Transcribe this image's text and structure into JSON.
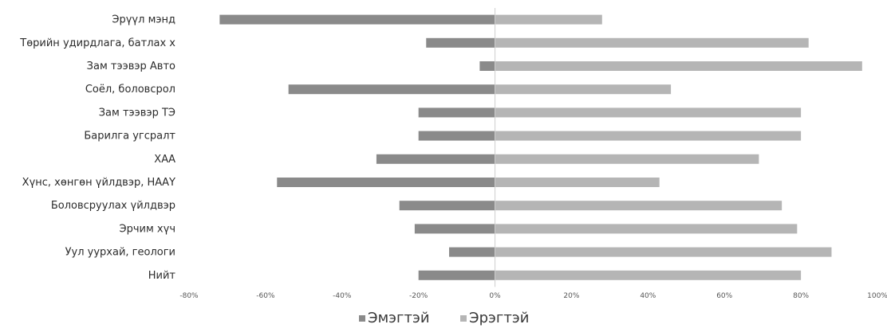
{
  "chart_data": {
    "type": "bar",
    "orientation": "horizontal",
    "stacked": "diverging",
    "title": "",
    "xlabel": "",
    "ylabel": "",
    "xlim": [
      -0.8,
      1.0
    ],
    "x_ticks": [
      -0.8,
      -0.6,
      -0.4,
      -0.2,
      0,
      0.2,
      0.4,
      0.6,
      0.8,
      1.0
    ],
    "x_tick_labels": [
      "-80%",
      "-60%",
      "-40%",
      "-20%",
      "0%",
      "20%",
      "40%",
      "60%",
      "80%",
      "100%"
    ],
    "categories": [
      "Эрүүл мэнд",
      "Төрийн удирдлага, батлах х",
      "Зам тээвэр Авто",
      "Соёл, боловсрол",
      "Зам тээвэр ТЭ",
      "Барилга угсралт",
      "ХАА",
      "Хүнс, хөнгөн үйлдвэр, НААҮ",
      "Боловсруулах үйлдвэр",
      "Эрчим хүч",
      "Уул уурхай, геологи",
      "Нийт"
    ],
    "series": [
      {
        "name": "Эмэгтэй",
        "color": "#8a8a8a",
        "values": [
          -0.72,
          -0.18,
          -0.04,
          -0.54,
          -0.2,
          -0.2,
          -0.31,
          -0.57,
          -0.25,
          -0.21,
          -0.12,
          -0.2
        ]
      },
      {
        "name": "Эрэгтэй",
        "color": "#b5b5b5",
        "values": [
          0.28,
          0.82,
          0.96,
          0.46,
          0.8,
          0.8,
          0.69,
          0.43,
          0.75,
          0.79,
          0.88,
          0.8
        ]
      }
    ],
    "legend_position": "bottom",
    "grid": false
  }
}
